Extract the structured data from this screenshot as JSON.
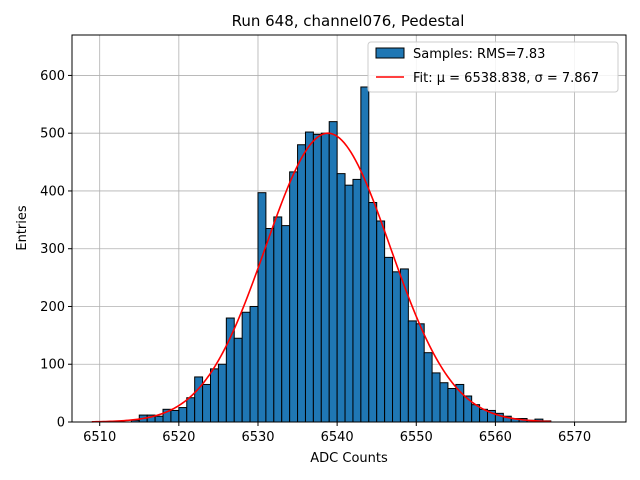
{
  "chart_data": {
    "type": "bar",
    "title": "Run 648, channel076, Pedestal",
    "xlabel": "ADC Counts",
    "ylabel": "Entries",
    "xlim": [
      6506.5,
      6576.5
    ],
    "ylim": [
      0,
      670
    ],
    "xticks": [
      6510,
      6520,
      6530,
      6540,
      6550,
      6560,
      6570
    ],
    "yticks": [
      0,
      100,
      200,
      300,
      400,
      500,
      600
    ],
    "grid": true,
    "legend_position": "top-right",
    "bin_width": 1,
    "series": [
      {
        "name": "Samples: RMS=7.83",
        "kind": "histogram",
        "color": "#1f77b4",
        "bin_left_edges": [
          6514,
          6515,
          6516,
          6517,
          6518,
          6519,
          6520,
          6521,
          6522,
          6523,
          6524,
          6525,
          6526,
          6527,
          6528,
          6529,
          6530,
          6531,
          6532,
          6533,
          6534,
          6535,
          6536,
          6537,
          6538,
          6539,
          6540,
          6541,
          6542,
          6543,
          6544,
          6545,
          6546,
          6547,
          6548,
          6549,
          6550,
          6551,
          6552,
          6553,
          6554,
          6555,
          6556,
          6557,
          6558,
          6559,
          6560,
          6561,
          6562,
          6563,
          6564,
          6565,
          6566
        ],
        "values": [
          3,
          12,
          12,
          10,
          22,
          20,
          25,
          42,
          78,
          65,
          92,
          100,
          180,
          145,
          190,
          200,
          397,
          335,
          355,
          340,
          433,
          480,
          502,
          498,
          500,
          520,
          430,
          410,
          420,
          580,
          380,
          348,
          285,
          260,
          265,
          175,
          170,
          120,
          85,
          68,
          58,
          65,
          45,
          30,
          22,
          20,
          15,
          10,
          6,
          6,
          3,
          5,
          2
        ]
      },
      {
        "name": "Fit: μ = 6538.838, σ = 7.867",
        "kind": "line",
        "color": "#ff0000",
        "mu": 6538.838,
        "sigma": 7.867,
        "amplitude": 500,
        "x_range": [
          6509,
          6567
        ]
      }
    ]
  }
}
